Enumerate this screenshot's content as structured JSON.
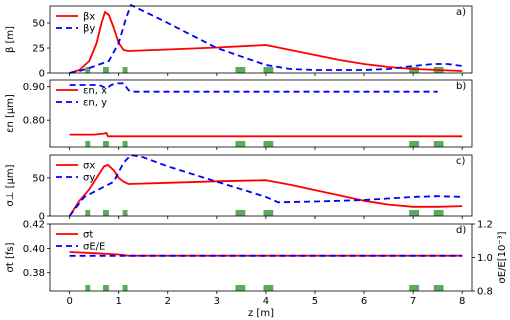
{
  "chart_data": {
    "type": "line",
    "xlabel": "z [m]",
    "xlim": [
      -0.4,
      8.2
    ],
    "xticks": [
      0,
      1,
      2,
      3,
      4,
      5,
      6,
      7,
      8
    ],
    "magnets": [
      [
        0.32,
        0.42
      ],
      [
        0.68,
        0.8
      ],
      [
        1.08,
        1.18
      ],
      [
        3.38,
        3.58
      ],
      [
        3.95,
        4.15
      ],
      [
        6.92,
        7.12
      ],
      [
        7.42,
        7.62
      ]
    ],
    "panels": [
      {
        "tag": "a)",
        "ylabel": "β [m]",
        "ylim": [
          0,
          67
        ],
        "yticks": [
          0,
          25,
          50
        ],
        "legend": "upper left",
        "series": [
          {
            "name": "βx",
            "color": "#ff0000",
            "dash": "solid",
            "x": [
              0,
              0.2,
              0.4,
              0.55,
              0.65,
              0.72,
              0.8,
              0.9,
              1.0,
              1.1,
              1.2,
              2.0,
              3.0,
              4.0,
              4.5,
              5.0,
              5.5,
              6.0,
              6.5,
              7.0,
              7.5,
              8.0
            ],
            "y": [
              0,
              3,
              12,
              30,
              50,
              61,
              58,
              45,
              30,
              23,
              22,
              23.5,
              25.5,
              28,
              23,
              18,
              13,
              9,
              6,
              4,
              3,
              2
            ]
          },
          {
            "name": "βy",
            "color": "#0000ff",
            "dash": "dashed",
            "x": [
              0,
              0.2,
              0.4,
              0.8,
              1.0,
              1.15,
              1.25,
              2.0,
              3.0,
              4.0,
              4.5,
              5.0,
              5.5,
              6.0,
              6.5,
              7.0,
              7.4,
              7.7,
              8.0
            ],
            "y": [
              0,
              2,
              5,
              12,
              30,
              55,
              68,
              50,
              25,
              8,
              4,
              3,
              3,
              3,
              4,
              7,
              9,
              9,
              7
            ]
          }
        ]
      },
      {
        "tag": "b)",
        "ylabel": "εn [μm]",
        "ylim": [
          0.72,
          0.92
        ],
        "yticks": [
          0.8,
          0.9
        ],
        "legend": "upper left",
        "series": [
          {
            "name": "εn, x",
            "color": "#ff0000",
            "dash": "solid",
            "x": [
              0,
              0.5,
              0.7,
              0.75,
              0.78,
              8.0
            ],
            "y": [
              0.757,
              0.757,
              0.76,
              0.762,
              0.752,
              0.752
            ]
          },
          {
            "name": "εn, y",
            "color": "#0000ff",
            "dash": "dashed",
            "x": [
              0,
              0.4,
              0.6,
              0.75,
              0.85,
              0.95,
              1.1,
              1.2,
              1.25,
              4.0,
              7.5
            ],
            "y": [
              0.905,
              0.905,
              0.905,
              0.895,
              0.905,
              0.91,
              0.91,
              0.89,
              0.885,
              0.885,
              0.885
            ]
          }
        ]
      },
      {
        "tag": "c)",
        "ylabel": "σ⊥ [μm]",
        "ylim": [
          0,
          80
        ],
        "yticks": [
          0,
          50
        ],
        "legend": "upper left",
        "series": [
          {
            "name": "σx",
            "color": "#ff0000",
            "dash": "solid",
            "x": [
              0,
              0.2,
              0.4,
              0.55,
              0.7,
              0.78,
              0.9,
              1.0,
              1.1,
              1.2,
              2.0,
              3.0,
              4.0,
              4.5,
              5.0,
              5.5,
              6.0,
              6.5,
              7.0,
              7.5,
              8.0
            ],
            "y": [
              0,
              20,
              35,
              50,
              65,
              67,
              60,
              50,
              45,
              42,
              43.5,
              45.5,
              47,
              41,
              34,
              27,
              20,
              15,
              12,
              12,
              13
            ]
          },
          {
            "name": "σy",
            "color": "#0000ff",
            "dash": "dashed",
            "x": [
              0,
              0.3,
              0.6,
              0.9,
              1.1,
              1.25,
              1.5,
              2.0,
              3.0,
              3.5,
              4.0,
              4.25,
              5.0,
              6.0,
              7.0,
              7.5,
              8.0
            ],
            "y": [
              0,
              25,
              35,
              45,
              70,
              80,
              77,
              65,
              45,
              35,
              25,
              18,
              19,
              21,
              25,
              26,
              25
            ]
          }
        ]
      },
      {
        "tag": "d)",
        "ylabel": "σt [fs]",
        "ylim": [
          0.365,
          0.42
        ],
        "yticks": [
          0.38,
          0.4,
          0.42
        ],
        "ylabel_right": "σE/E[10⁻³]",
        "ylim_right": [
          0.8,
          1.2
        ],
        "yticks_right": [
          0.8,
          1.0,
          1.2
        ],
        "legend": "upper left",
        "series": [
          {
            "name": "σt",
            "color": "#ff0000",
            "dash": "solid",
            "axis": "left",
            "x": [
              0,
              0.5,
              1.0,
              1.2,
              8.0
            ],
            "y": [
              0.397,
              0.396,
              0.395,
              0.394,
              0.394
            ]
          },
          {
            "name": "σE/E",
            "color": "#0000ff",
            "dash": "dashed",
            "axis": "right",
            "x": [
              0,
              8.0
            ],
            "y": [
              1.01,
              1.01
            ]
          }
        ]
      }
    ]
  }
}
